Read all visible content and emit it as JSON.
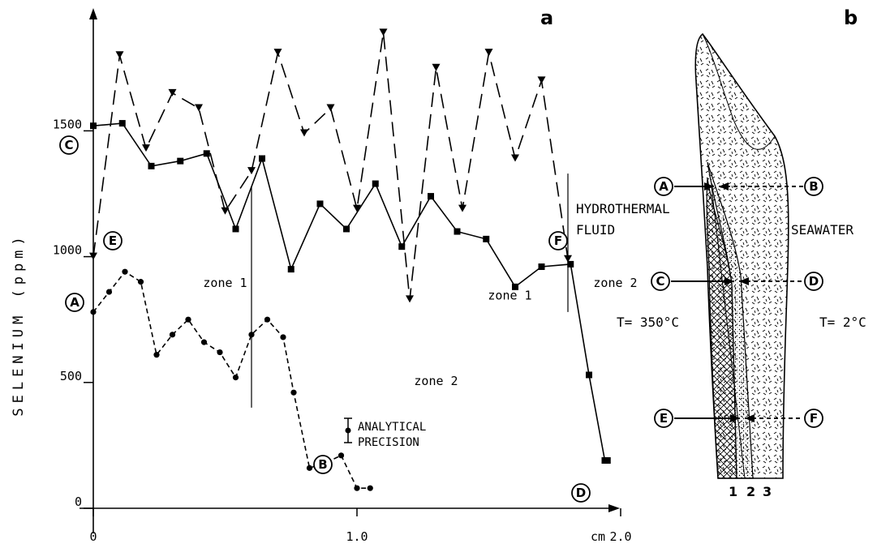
{
  "chart_data": [
    {
      "type": "line",
      "panel": "a",
      "xlabel": "cm",
      "ylabel": "SELENIUM (ppm)",
      "xlim": [
        0,
        2.3
      ],
      "ylim": [
        0,
        1950
      ],
      "x_ticks": [
        "0",
        "1.0",
        "2.0"
      ],
      "y_ticks": [
        "0",
        "500",
        "1000",
        "1500"
      ],
      "series": [
        {
          "start_label": "A",
          "end_label": "B",
          "marker": "circle",
          "style": "dashed",
          "x": [
            0,
            0.06,
            0.12,
            0.18,
            0.24,
            0.3,
            0.36,
            0.42,
            0.48,
            0.54,
            0.6,
            0.66,
            0.72,
            0.76,
            0.82,
            0.88,
            0.94,
            1.0,
            1.05
          ],
          "y": [
            780,
            860,
            940,
            900,
            610,
            690,
            750,
            660,
            620,
            520,
            690,
            750,
            680,
            460,
            160,
            180,
            210,
            80,
            80
          ]
        },
        {
          "start_label": "C",
          "end_label": "D",
          "marker": "square",
          "style": "solid",
          "x": [
            0,
            0.11,
            0.22,
            0.33,
            0.43,
            0.54,
            0.64,
            0.75,
            0.86,
            0.96,
            1.07,
            1.17,
            1.28,
            1.38,
            1.49,
            1.6,
            1.7,
            1.81,
            1.88,
            1.94,
            1.95
          ],
          "y": [
            1520,
            1530,
            1360,
            1380,
            1410,
            1110,
            1390,
            950,
            1210,
            1110,
            1290,
            1040,
            1240,
            1100,
            1070,
            880,
            960,
            970,
            530,
            190,
            190
          ]
        },
        {
          "start_label": "E",
          "end_label": "F",
          "marker": "triangle-down",
          "style": "long-dash",
          "x": [
            0,
            0.1,
            0.2,
            0.3,
            0.4,
            0.5,
            0.6,
            0.7,
            0.8,
            0.9,
            1.0,
            1.1,
            1.2,
            1.3,
            1.4,
            1.5,
            1.6,
            1.7,
            1.8
          ],
          "y": [
            1000,
            1800,
            1430,
            1650,
            1590,
            1180,
            1340,
            1810,
            1490,
            1590,
            1190,
            1890,
            830,
            1750,
            1190,
            1810,
            1390,
            1700,
            990
          ]
        }
      ],
      "annotations": [
        {
          "text": "zone 1",
          "x": 0.5,
          "y": 880
        },
        {
          "text": "zone 2",
          "x": 1.3,
          "y": 490
        },
        {
          "text": "zone 1",
          "x": 1.58,
          "y": 830
        },
        {
          "text": "zone 2",
          "x": 1.98,
          "y": 880
        }
      ],
      "zone_dividers": [
        {
          "x": 0.6,
          "y_from": 400,
          "y_to": 1280
        },
        {
          "x": 1.8,
          "y_from": 780,
          "y_to": 1330
        }
      ],
      "legend": {
        "line1": "ANALYTICAL",
        "line2": "PRECISION"
      }
    },
    {
      "type": "diagram",
      "panel": "b",
      "labels": {
        "left_top": "HYDROTHERMAL",
        "left_bottom": "FLUID",
        "right": "SEAWATER",
        "t_left": "T= 350°C",
        "t_right": "T= 2°C"
      },
      "section_points": [
        "A",
        "B",
        "C",
        "D",
        "E",
        "F"
      ],
      "layers": [
        "1",
        "2",
        "3"
      ]
    }
  ]
}
